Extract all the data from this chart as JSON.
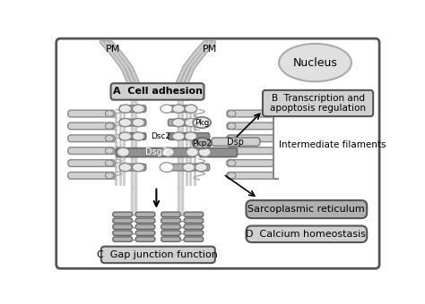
{
  "nucleus_label": "Nucleus",
  "label_A": "A  Cell adhesion",
  "label_B": "B  Transcription and\napoptosis regulation",
  "label_C": "C  Gap junction function",
  "label_D": "D  Calcium homeostasis",
  "label_Dsc2": "Dsc2",
  "label_Dsg2": "Dsg2",
  "label_Pkg": "Pkg",
  "label_Pkp2": "Pkp2",
  "label_Dsp": "Dsp",
  "label_PM_left": "PM",
  "label_PM_right": "PM",
  "label_IF": "Intermediate filaments",
  "label_SR": "Sarcoplasmic reticulum",
  "gray_light": "#d0d0d0",
  "gray_med": "#b0b0b0",
  "gray_dark": "#909090",
  "white_ish": "#e8e8e8",
  "bar_color": "#aaaaaa",
  "dark_bar": "#888888"
}
